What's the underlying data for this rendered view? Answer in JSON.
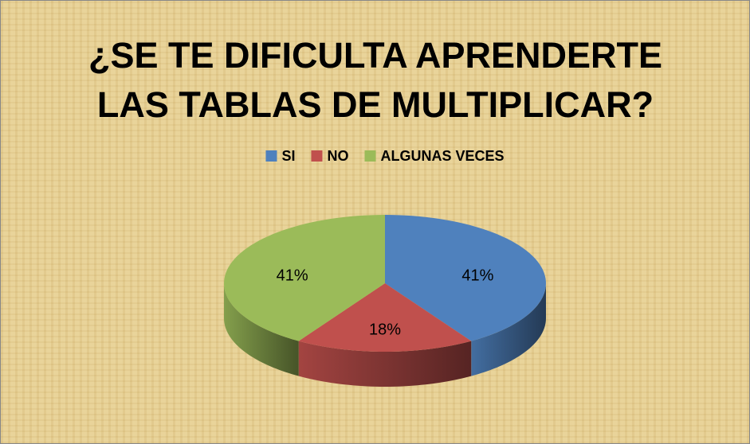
{
  "chart_data": {
    "type": "pie",
    "title": "¿SE TE DIFICULTA APRENDERTE LAS TABLAS DE MULTIPLICAR?",
    "categories": [
      "SI",
      "NO",
      "ALGUNAS VECES"
    ],
    "values": [
      41,
      18,
      41
    ],
    "value_labels": [
      "41%",
      "18%",
      "41%"
    ],
    "colors": [
      "#4f81bd",
      "#c0504d",
      "#9bbb59"
    ],
    "legend": "top"
  }
}
